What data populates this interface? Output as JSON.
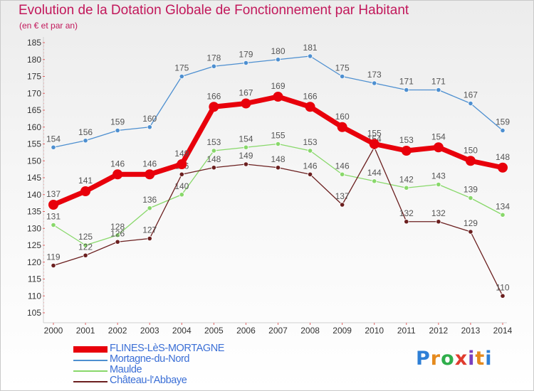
{
  "header": {
    "title": "Evolution de la Dotation Globale de Fonctionnement par Habitant",
    "subtitle": "(en € et par an)"
  },
  "logo": {
    "text": "Proxiti",
    "letter_colors": [
      "#2e7fd6",
      "#e58a1e",
      "#2fae4b",
      "#e03b2e",
      "#7b3fbf",
      "#e58a1e",
      "#2e7fd6"
    ]
  },
  "chart_data": {
    "type": "line",
    "x": [
      "2000",
      "2001",
      "2002",
      "2003",
      "2004",
      "2005",
      "2006",
      "2007",
      "2008",
      "2009",
      "2010",
      "2011",
      "2012",
      "2013",
      "2014"
    ],
    "ylim": [
      105,
      185
    ],
    "yticks": [
      105,
      110,
      115,
      120,
      125,
      130,
      135,
      140,
      145,
      150,
      155,
      160,
      165,
      170,
      175,
      180,
      185
    ],
    "grid": false,
    "legend_position": "bottom-left",
    "series": [
      {
        "name": "FLINES-LèS-MORTAGNE",
        "color": "#e8000b",
        "style": "thick",
        "values": [
          137,
          141,
          146,
          146,
          149,
          166,
          167,
          169,
          166,
          160,
          155,
          153,
          154,
          150,
          148
        ]
      },
      {
        "name": "Mortagne-du-Nord",
        "color": "#4d8fd0",
        "style": "thin",
        "values": [
          154,
          156,
          159,
          160,
          175,
          178,
          179,
          180,
          181,
          175,
          173,
          171,
          171,
          167,
          159
        ]
      },
      {
        "name": "Maulde",
        "color": "#88d86a",
        "style": "thin",
        "values": [
          131,
          125,
          128,
          136,
          140,
          153,
          154,
          155,
          153,
          146,
          144,
          142,
          143,
          139,
          134
        ]
      },
      {
        "name": "Château-l'Abbaye",
        "color": "#6b1f1f",
        "style": "thin",
        "values": [
          119,
          122,
          126,
          127,
          146,
          148,
          149,
          148,
          146,
          137,
          154,
          132,
          132,
          129,
          110
        ]
      }
    ]
  }
}
